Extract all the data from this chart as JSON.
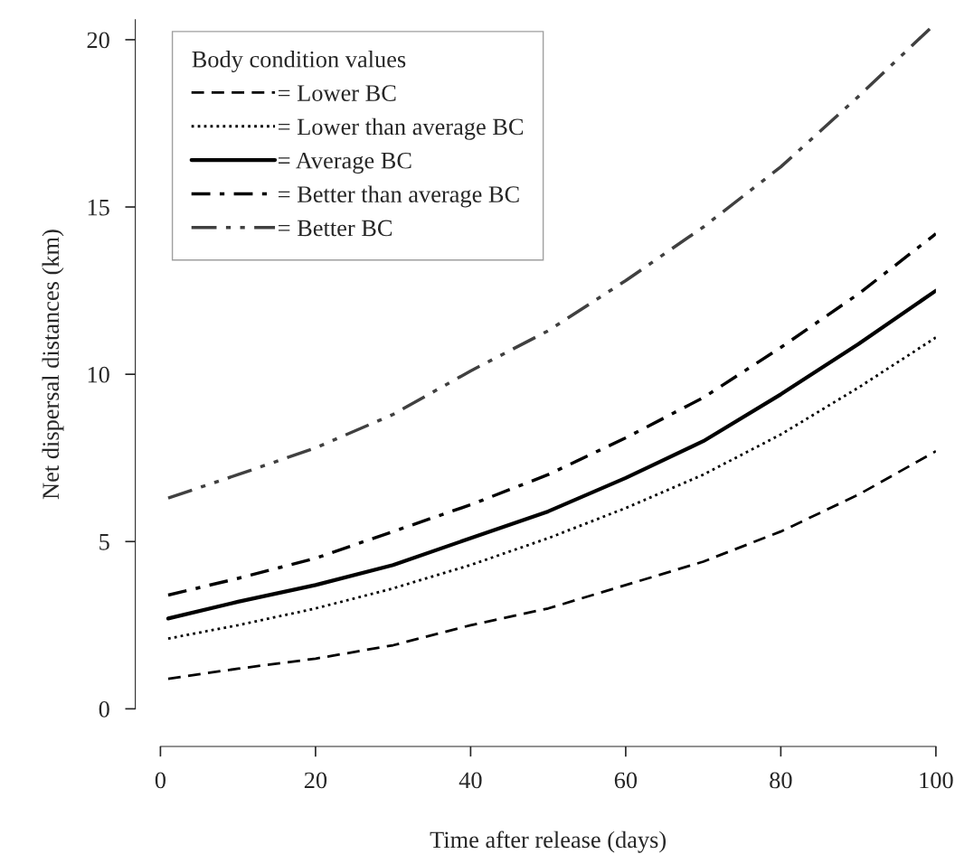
{
  "chart_data": {
    "type": "line",
    "xlabel": "Time after release (days)",
    "ylabel": "Net dispersal distances (km)",
    "legend_title": "Body condition values",
    "x": [
      1,
      10,
      20,
      30,
      40,
      50,
      60,
      70,
      80,
      90,
      100
    ],
    "series": [
      {
        "name": "= Lower BC",
        "color": "#000000",
        "line_style": "dashed",
        "values": [
          0.9,
          1.2,
          1.5,
          1.9,
          2.5,
          3.0,
          3.7,
          4.4,
          5.3,
          6.4,
          7.7
        ]
      },
      {
        "name": "= Lower than average BC",
        "color": "#000000",
        "line_style": "dotted",
        "values": [
          2.1,
          2.5,
          3.0,
          3.6,
          4.3,
          5.1,
          6.0,
          7.0,
          8.2,
          9.6,
          11.1
        ]
      },
      {
        "name": "= Average BC",
        "color": "#000000",
        "line_style": "solid",
        "values": [
          2.7,
          3.2,
          3.7,
          4.3,
          5.1,
          5.9,
          6.9,
          8.0,
          9.4,
          10.9,
          12.5
        ]
      },
      {
        "name": "= Better than average BC",
        "color": "#000000",
        "line_style": "dashdot",
        "values": [
          3.4,
          3.9,
          4.5,
          5.3,
          6.1,
          7.0,
          8.1,
          9.3,
          10.8,
          12.4,
          14.2
        ]
      },
      {
        "name": "= Better BC",
        "color": "#404040",
        "line_style": "longdashdotdot",
        "values": [
          6.3,
          7.0,
          7.8,
          8.8,
          10.1,
          11.3,
          12.8,
          14.4,
          16.2,
          18.3,
          20.5
        ]
      }
    ],
    "xlim": [
      0,
      100
    ],
    "ylim": [
      0,
      20.6
    ],
    "xticks": [
      0,
      20,
      40,
      60,
      80,
      100
    ],
    "yticks": [
      0,
      5,
      10,
      15,
      20
    ],
    "grid": false,
    "legend": "top left"
  }
}
